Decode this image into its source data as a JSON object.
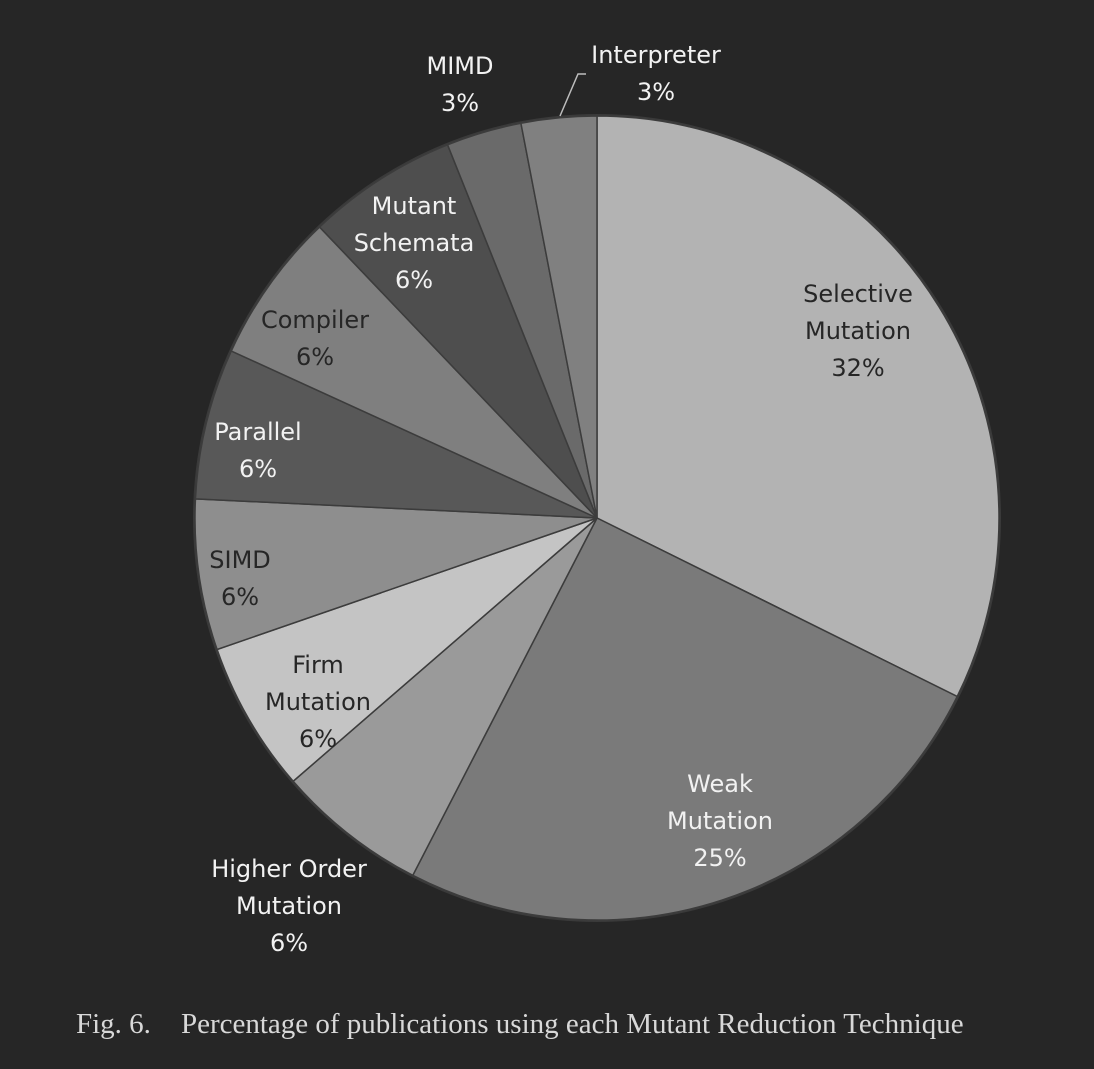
{
  "chart_data": {
    "type": "pie",
    "title": "",
    "slices": [
      {
        "name": "Selective Mutation",
        "label_lines": [
          "Selective",
          "Mutation"
        ],
        "value": 32,
        "value_label": "32%",
        "color": "#b3b3b3",
        "text_color": "#262626"
      },
      {
        "name": "Weak Mutation",
        "label_lines": [
          "Weak",
          "Mutation"
        ],
        "value": 25,
        "value_label": "25%",
        "color": "#7a7a7a",
        "text_color": "#f2f2f2"
      },
      {
        "name": "Higher Order Mutation",
        "label_lines": [
          "Higher Order",
          "Mutation"
        ],
        "value": 6,
        "value_label": "6%",
        "color": "#9a9a9a",
        "text_color": "#f2f2f2"
      },
      {
        "name": "Firm Mutation",
        "label_lines": [
          "Firm",
          "Mutation"
        ],
        "value": 6,
        "value_label": "6%",
        "color": "#c4c4c4",
        "text_color": "#262626"
      },
      {
        "name": "SIMD",
        "label_lines": [
          "SIMD"
        ],
        "value": 6,
        "value_label": "6%",
        "color": "#8e8e8e",
        "text_color": "#262626"
      },
      {
        "name": "Parallel",
        "label_lines": [
          "Parallel"
        ],
        "value": 6,
        "value_label": "6%",
        "color": "#585858",
        "text_color": "#f2f2f2"
      },
      {
        "name": "Compiler",
        "label_lines": [
          "Compiler"
        ],
        "value": 6,
        "value_label": "6%",
        "color": "#7f7f7f",
        "text_color": "#262626"
      },
      {
        "name": "Mutant Schemata",
        "label_lines": [
          "Mutant",
          "Schemata"
        ],
        "value": 6,
        "value_label": "6%",
        "color": "#4e4e4e",
        "text_color": "#f2f2f2"
      },
      {
        "name": "MIMD",
        "label_lines": [
          "MIMD"
        ],
        "value": 3,
        "value_label": "3%",
        "color": "#6a6a6a",
        "text_color": "#f2f2f2"
      },
      {
        "name": "Interpreter",
        "label_lines": [
          "Interpreter"
        ],
        "value": 3,
        "value_label": "3%",
        "color": "#808080",
        "text_color": "#f2f2f2"
      }
    ],
    "legend": "none",
    "labels": "data labels with category name and percentage"
  },
  "caption": {
    "figure_number": "Fig. 6.",
    "text": "Percentage of publications using each Mutant Reduction Technique"
  }
}
